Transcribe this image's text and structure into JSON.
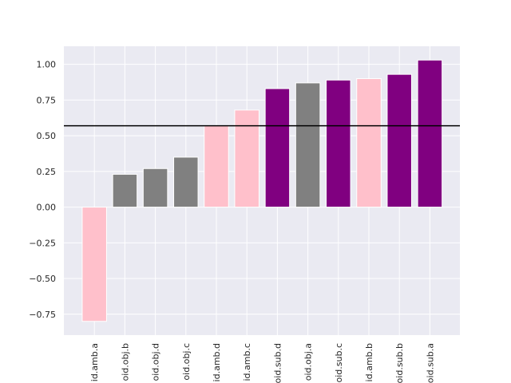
{
  "chart_data": {
    "type": "bar",
    "categories": [
      "id.amb.a",
      "oid.obj.b",
      "oid.obj.d",
      "oid.obj.c",
      "id.amb.d",
      "id.amb.c",
      "oid.sub.d",
      "oid.obj.a",
      "oid.sub.c",
      "id.amb.b",
      "oid.sub.b",
      "oid.sub.a"
    ],
    "values": [
      -0.8,
      0.23,
      0.27,
      0.35,
      0.57,
      0.68,
      0.83,
      0.87,
      0.89,
      0.9,
      0.93,
      1.03
    ],
    "bar_colors": [
      "#ffc0cb",
      "#808080",
      "#808080",
      "#808080",
      "#ffc0cb",
      "#ffc0cb",
      "#800080",
      "#808080",
      "#800080",
      "#ffc0cb",
      "#800080",
      "#800080"
    ],
    "reference_line": 0.57,
    "reference_line_color": "#000000",
    "yticks": [
      -0.75,
      -0.5,
      -0.25,
      0.0,
      0.25,
      0.5,
      0.75,
      1.0
    ],
    "ytick_labels": [
      "−0.75",
      "−0.50",
      "−0.25",
      "0.00",
      "0.25",
      "0.50",
      "0.75",
      "1.00"
    ],
    "ylim": [
      -0.8965,
      1.1265
    ],
    "grid": true,
    "background_color": "#eaeaf2",
    "grid_color": "#ffffff",
    "xlabel": "",
    "ylabel": "",
    "title": ""
  }
}
